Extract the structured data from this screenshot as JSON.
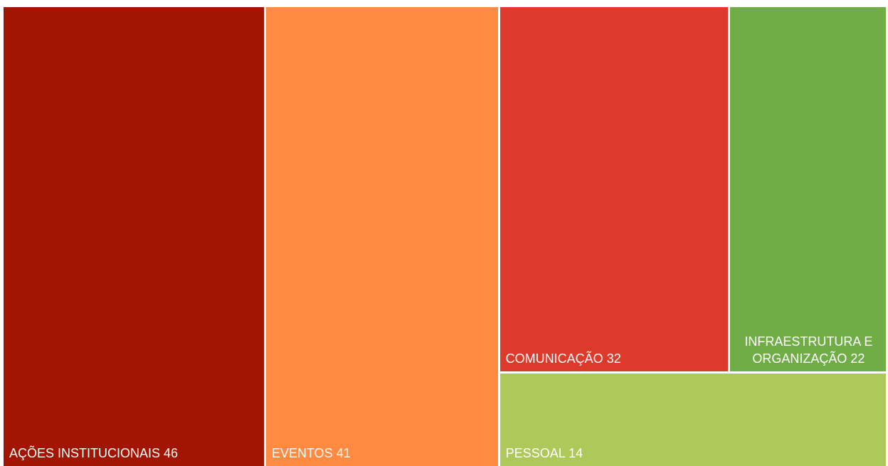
{
  "chart_data": {
    "type": "treemap",
    "categories": [
      "AÇÕES INSTITUCIONAIS",
      "EVENTOS",
      "COMUNICAÇÃO",
      "INFRAESTRUTURA E ORGANIZAÇÃO",
      "PESSOAL"
    ],
    "values": [
      46,
      41,
      32,
      22,
      14
    ],
    "colors": [
      "#a31503",
      "#fe8b41",
      "#dc3b2b",
      "#70ad47",
      "#aec95a"
    ]
  }
}
